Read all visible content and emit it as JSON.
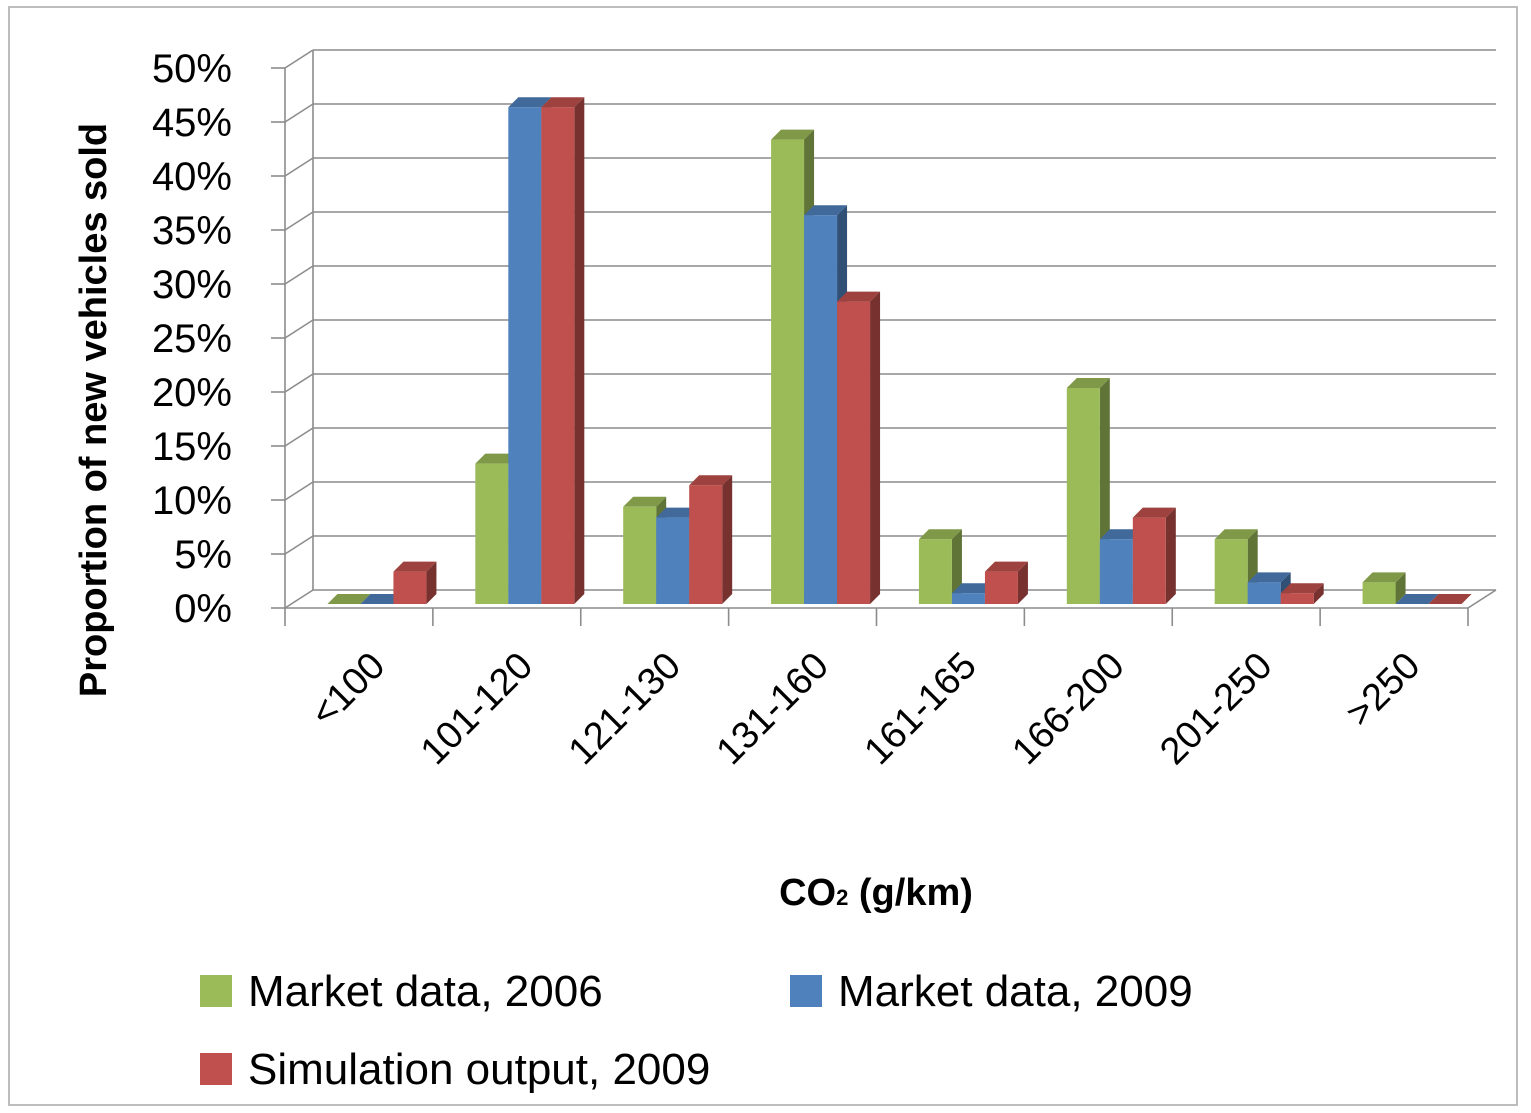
{
  "chart_data": {
    "type": "bar",
    "style": "3d-clustered-column",
    "ylabel": "Proportion of new vehicles sold",
    "xlabel_main": "CO",
    "xlabel_sub": "2",
    "xlabel_unit": " (g/km)",
    "categories": [
      "<100",
      "101-120",
      "121-130",
      "131-160",
      "161-165",
      "166-200",
      "201-250",
      ">250"
    ],
    "yticks": [
      "0%",
      "5%",
      "10%",
      "15%",
      "20%",
      "25%",
      "30%",
      "35%",
      "40%",
      "45%",
      "50%"
    ],
    "ylim": [
      0,
      0.5
    ],
    "grid": true,
    "legend_position": "bottom",
    "series": [
      {
        "name": "Market data, 2006",
        "color": "#9bbb59",
        "values": [
          0.0,
          0.13,
          0.09,
          0.43,
          0.06,
          0.2,
          0.06,
          0.02
        ]
      },
      {
        "name": "Market data, 2009",
        "color": "#4f81bd",
        "values": [
          0.0,
          0.46,
          0.08,
          0.36,
          0.01,
          0.06,
          0.02,
          0.0
        ]
      },
      {
        "name": "Simulation output, 2009",
        "color": "#c0504d",
        "values": [
          0.03,
          0.46,
          0.11,
          0.28,
          0.03,
          0.08,
          0.01,
          0.0
        ]
      }
    ]
  }
}
